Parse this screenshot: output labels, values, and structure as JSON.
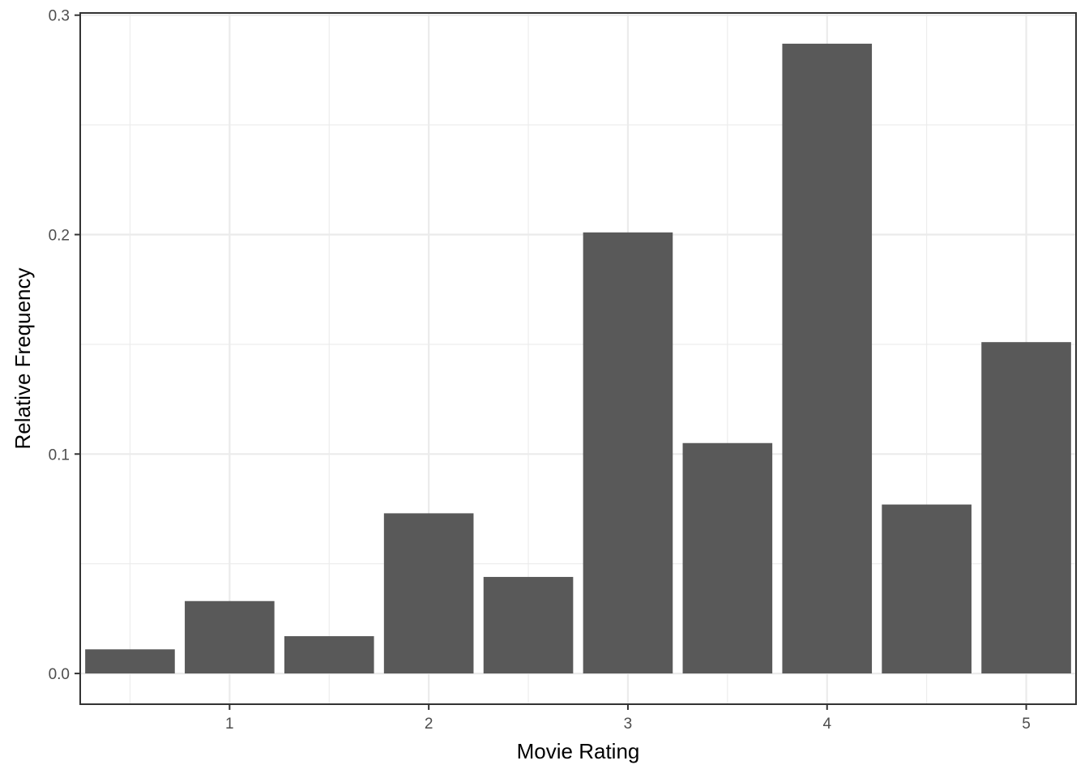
{
  "chart_data": {
    "type": "bar",
    "title": "",
    "xlabel": "Movie Rating",
    "ylabel": "Relative Frequency",
    "x": [
      0.5,
      1.0,
      1.5,
      2.0,
      2.5,
      3.0,
      3.5,
      4.0,
      4.5,
      5.0
    ],
    "values": [
      0.011,
      0.033,
      0.017,
      0.073,
      0.044,
      0.201,
      0.105,
      0.287,
      0.077,
      0.151
    ],
    "xlim": [
      0.25,
      5.25
    ],
    "ylim": [
      -0.014,
      0.301
    ],
    "x_ticks": [
      1,
      2,
      3,
      4,
      5
    ],
    "x_tick_labels": [
      "1",
      "2",
      "3",
      "4",
      "5"
    ],
    "y_ticks": [
      0.0,
      0.1,
      0.2,
      0.3
    ],
    "y_tick_labels": [
      "0.0",
      "0.1",
      "0.2",
      "0.3"
    ],
    "grid": true,
    "colors": {
      "bar": "#595959",
      "grid": "#ebebeb",
      "panel_border": "#333333",
      "background": "#ffffff"
    }
  }
}
